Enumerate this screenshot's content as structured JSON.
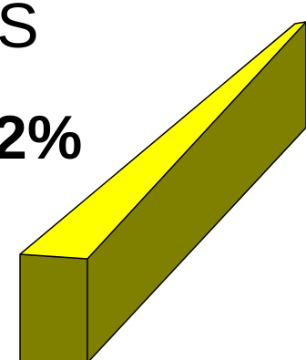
{
  "slide": {
    "heading_fragment": "S",
    "percent_fragment": "2%"
  },
  "colors": {
    "bar_top": "#ffff00",
    "bar_face": "#808000",
    "bar_side": "#6b6b00",
    "outline": "#000000"
  },
  "icons": {
    "bar": "3d-slanted-bar"
  }
}
